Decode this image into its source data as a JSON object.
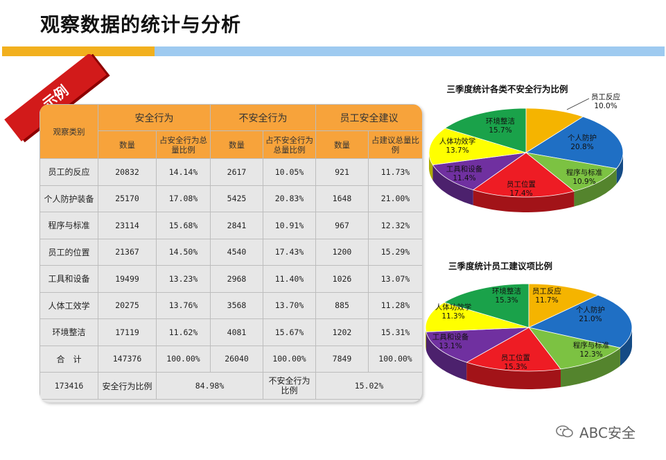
{
  "title": "观察数据的统计与分析",
  "badge": "示例",
  "table": {
    "corner": "观察类别",
    "groups": [
      "安全行为",
      "不安全行为",
      "员工安全建议"
    ],
    "subheaders": [
      "数量",
      "占安全行为总量比例",
      "数量",
      "占不安全行为总量比例",
      "数量",
      "占建议总量比例"
    ],
    "rows": [
      {
        "cat": "员工的反应",
        "vals": [
          "20832",
          "14.14%",
          "2617",
          "10.05%",
          "921",
          "11.73%"
        ]
      },
      {
        "cat": "个人防护装备",
        "vals": [
          "25170",
          "17.08%",
          "5425",
          "20.83%",
          "1648",
          "21.00%"
        ]
      },
      {
        "cat": "程序与标准",
        "vals": [
          "23114",
          "15.68%",
          "2841",
          "10.91%",
          "967",
          "12.32%"
        ]
      },
      {
        "cat": "员工的位置",
        "vals": [
          "21367",
          "14.50%",
          "4540",
          "17.43%",
          "1200",
          "15.29%"
        ]
      },
      {
        "cat": "工具和设备",
        "vals": [
          "19499",
          "13.23%",
          "2968",
          "11.40%",
          "1026",
          "13.07%"
        ]
      },
      {
        "cat": "人体工效学",
        "vals": [
          "20275",
          "13.76%",
          "3568",
          "13.70%",
          "885",
          "11.28%"
        ]
      },
      {
        "cat": "环境整洁",
        "vals": [
          "17119",
          "11.62%",
          "4081",
          "15.67%",
          "1202",
          "15.31%"
        ]
      },
      {
        "cat": "合　计",
        "vals": [
          "147376",
          "100.00%",
          "26040",
          "100.00%",
          "7849",
          "100.00%"
        ]
      }
    ],
    "footer": {
      "total": "173416",
      "safe_label": "安全行为比例",
      "safe_value": "84.98%",
      "unsafe_label": "不安全行为比例",
      "unsafe_value": "15.02%"
    }
  },
  "chart_data": [
    {
      "type": "pie",
      "title": "三季度统计各类不安全行为比例",
      "slices": [
        {
          "label": "员工反应",
          "pct": "10.0%",
          "value": 10.0,
          "color": "#f5b400"
        },
        {
          "label": "个人防护",
          "pct": "20.8%",
          "value": 20.8,
          "color": "#1f6fc4"
        },
        {
          "label": "程序与标准",
          "pct": "10.9%",
          "value": 10.9,
          "color": "#7cc242"
        },
        {
          "label": "员工位置",
          "pct": "17.4%",
          "value": 17.4,
          "color": "#ee1c24"
        },
        {
          "label": "工具和设备",
          "pct": "11.4%",
          "value": 11.4,
          "color": "#7030a0"
        },
        {
          "label": "人体功效学",
          "pct": "13.7%",
          "value": 13.7,
          "color": "#ffff00"
        },
        {
          "label": "环境整洁",
          "pct": "15.7%",
          "value": 15.7,
          "color": "#1aa24a"
        }
      ]
    },
    {
      "type": "pie",
      "title": "三季度统计员工建议项比例",
      "slices": [
        {
          "label": "员工反应",
          "pct": "11.7%",
          "value": 11.7,
          "color": "#f5b400"
        },
        {
          "label": "个人防护",
          "pct": "21.0%",
          "value": 21.0,
          "color": "#1f6fc4"
        },
        {
          "label": "程序与标准",
          "pct": "12.3%",
          "value": 12.3,
          "color": "#7cc242"
        },
        {
          "label": "员工位置",
          "pct": "15.3%",
          "value": 15.3,
          "color": "#ee1c24"
        },
        {
          "label": "工具和设备",
          "pct": "13.1%",
          "value": 13.1,
          "color": "#7030a0"
        },
        {
          "label": "人体功效学",
          "pct": "11.3%",
          "value": 11.3,
          "color": "#ffff00"
        },
        {
          "label": "环境整洁",
          "pct": "15.3%",
          "value": 15.3,
          "color": "#1aa24a"
        }
      ]
    }
  ],
  "watermark": "ABC安全"
}
